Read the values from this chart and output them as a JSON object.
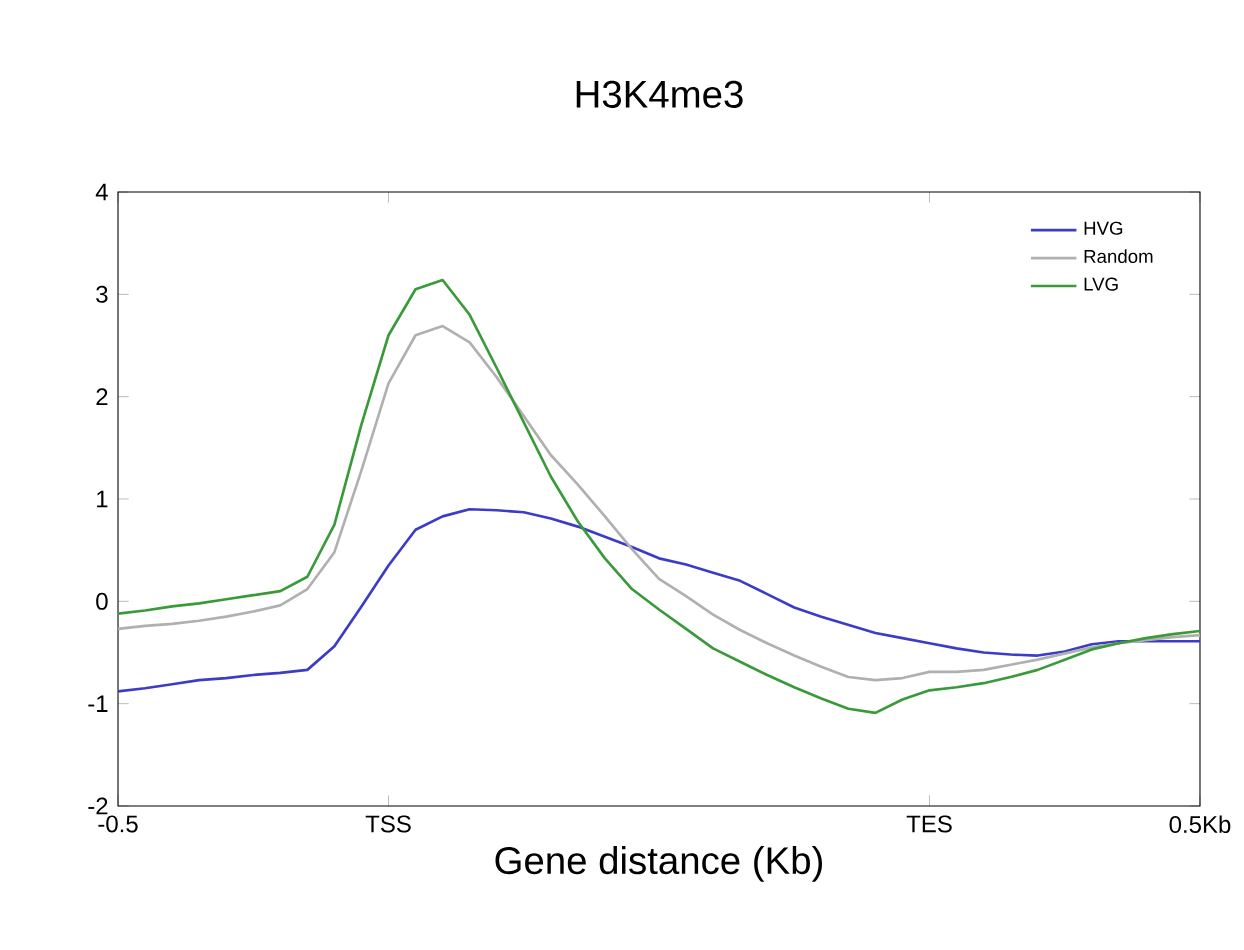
{
  "chart_data": {
    "type": "line",
    "title": "H3K4me3",
    "xlabel": "Gene distance (Kb)",
    "categories": [
      "-0.5",
      null,
      null,
      null,
      null,
      null,
      null,
      null,
      null,
      null,
      "TSS",
      null,
      null,
      null,
      null,
      null,
      null,
      null,
      null,
      null,
      null,
      null,
      null,
      null,
      null,
      null,
      null,
      null,
      null,
      null,
      "TES",
      null,
      null,
      null,
      null,
      null,
      null,
      null,
      null,
      null,
      "0.5Kb"
    ],
    "ylim": [
      -2,
      4
    ],
    "yticks": [
      -2,
      -1,
      0,
      1,
      2,
      3,
      4
    ],
    "grid": false,
    "legend": "top right",
    "marker": "none",
    "line_style": "solid",
    "series": [
      {
        "name": "HVG",
        "color": "#3c3cc8",
        "values": [
          -0.88,
          -0.85,
          -0.81,
          -0.77,
          -0.75,
          -0.72,
          -0.7,
          -0.67,
          -0.44,
          -0.05,
          0.35,
          0.7,
          0.83,
          0.9,
          0.89,
          0.87,
          0.81,
          0.73,
          0.63,
          0.53,
          0.42,
          0.36,
          0.28,
          0.2,
          0.07,
          -0.06,
          -0.15,
          -0.23,
          -0.31,
          -0.36,
          -0.41,
          -0.46,
          -0.5,
          -0.52,
          -0.53,
          -0.49,
          -0.42,
          -0.39,
          -0.39,
          -0.39,
          -0.39
        ]
      },
      {
        "name": "Random",
        "color": "#b0b0b0",
        "values": [
          -0.27,
          -0.24,
          -0.22,
          -0.19,
          -0.15,
          -0.1,
          -0.04,
          0.12,
          0.48,
          1.28,
          2.13,
          2.6,
          2.69,
          2.53,
          2.19,
          1.81,
          1.43,
          1.14,
          0.83,
          0.51,
          0.22,
          0.05,
          -0.13,
          -0.28,
          -0.41,
          -0.53,
          -0.64,
          -0.74,
          -0.77,
          -0.75,
          -0.69,
          -0.69,
          -0.67,
          -0.62,
          -0.57,
          -0.51,
          -0.45,
          -0.41,
          -0.38,
          -0.35,
          -0.33
        ]
      },
      {
        "name": "LVG",
        "color": "#3a9a3a",
        "values": [
          -0.12,
          -0.09,
          -0.05,
          -0.02,
          0.02,
          0.06,
          0.1,
          0.24,
          0.75,
          1.73,
          2.6,
          3.05,
          3.14,
          2.8,
          2.28,
          1.75,
          1.22,
          0.78,
          0.42,
          0.12,
          -0.08,
          -0.27,
          -0.46,
          -0.59,
          -0.72,
          -0.84,
          -0.95,
          -1.05,
          -1.09,
          -0.96,
          -0.87,
          -0.84,
          -0.8,
          -0.74,
          -0.67,
          -0.57,
          -0.47,
          -0.41,
          -0.36,
          -0.32,
          -0.29
        ]
      }
    ]
  }
}
